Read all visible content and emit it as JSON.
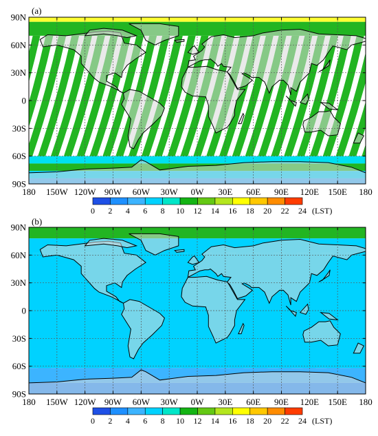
{
  "colors": {
    "land": "#d9d9d9",
    "swath_green": "#22b522",
    "swath_cyan": "#00e0f0",
    "swath_blue": "#1e90ff",
    "coast": "#000000",
    "grid": "#555555"
  },
  "axes": {
    "x_ticks": [
      "180",
      "150W",
      "120W",
      "90W",
      "60W",
      "30W",
      "0W",
      "30E",
      "60E",
      "90E",
      "120E",
      "150E",
      "180"
    ],
    "y_ticks": [
      "90N",
      "60N",
      "30N",
      "0",
      "30S",
      "60S",
      "90S"
    ]
  },
  "colorbar": {
    "ticks": [
      "0",
      "2",
      "4",
      "6",
      "8",
      "10",
      "12",
      "14",
      "16",
      "18",
      "20",
      "22",
      "24"
    ],
    "unit": "(LST)",
    "colors": [
      "#1e50e6",
      "#1e90ff",
      "#3cb4ff",
      "#00d2ff",
      "#00e6c8",
      "#14b414",
      "#64c814",
      "#b4e61e",
      "#ffff00",
      "#ffc800",
      "#ff8c00",
      "#ff3c00"
    ]
  },
  "panels": [
    {
      "label": "(a)",
      "polar_n": [
        {
          "lat": [
            90,
            85
          ],
          "color": "#ffff33"
        },
        {
          "lat": [
            85,
            70
          ],
          "color": "#22b522"
        }
      ],
      "polar_s": [
        {
          "lat": [
            -60,
            -68
          ],
          "color": "#00e0f0"
        },
        {
          "lat": [
            -68,
            -76
          ],
          "color": "#22b522"
        },
        {
          "lat": [
            -76,
            -84
          ],
          "color": "#00d2ff"
        },
        {
          "lat": [
            -84,
            -90
          ],
          "color": "#3cb4ff"
        }
      ],
      "swaths": {
        "count": 26,
        "width_deg": 8,
        "tilt_deg": 18,
        "lat": [
          70,
          -60
        ],
        "color": "#22b522"
      }
    },
    {
      "label": "(b)",
      "polar_n": [
        {
          "lat": [
            90,
            78
          ],
          "color": "#22b522"
        },
        {
          "lat": [
            78,
            62
          ],
          "color": "#00d2ff"
        }
      ],
      "polar_s": [
        {
          "lat": [
            -62,
            -78
          ],
          "color": "#3cb4ff"
        },
        {
          "lat": [
            -78,
            -90
          ],
          "color": "#1e90ff"
        }
      ],
      "swaths": {
        "count": 14,
        "width_deg": 14,
        "tilt_deg": 16,
        "lat": [
          62,
          -62
        ],
        "color": "#00d2ff"
      },
      "base_fill": "#00d2ff"
    }
  ]
}
